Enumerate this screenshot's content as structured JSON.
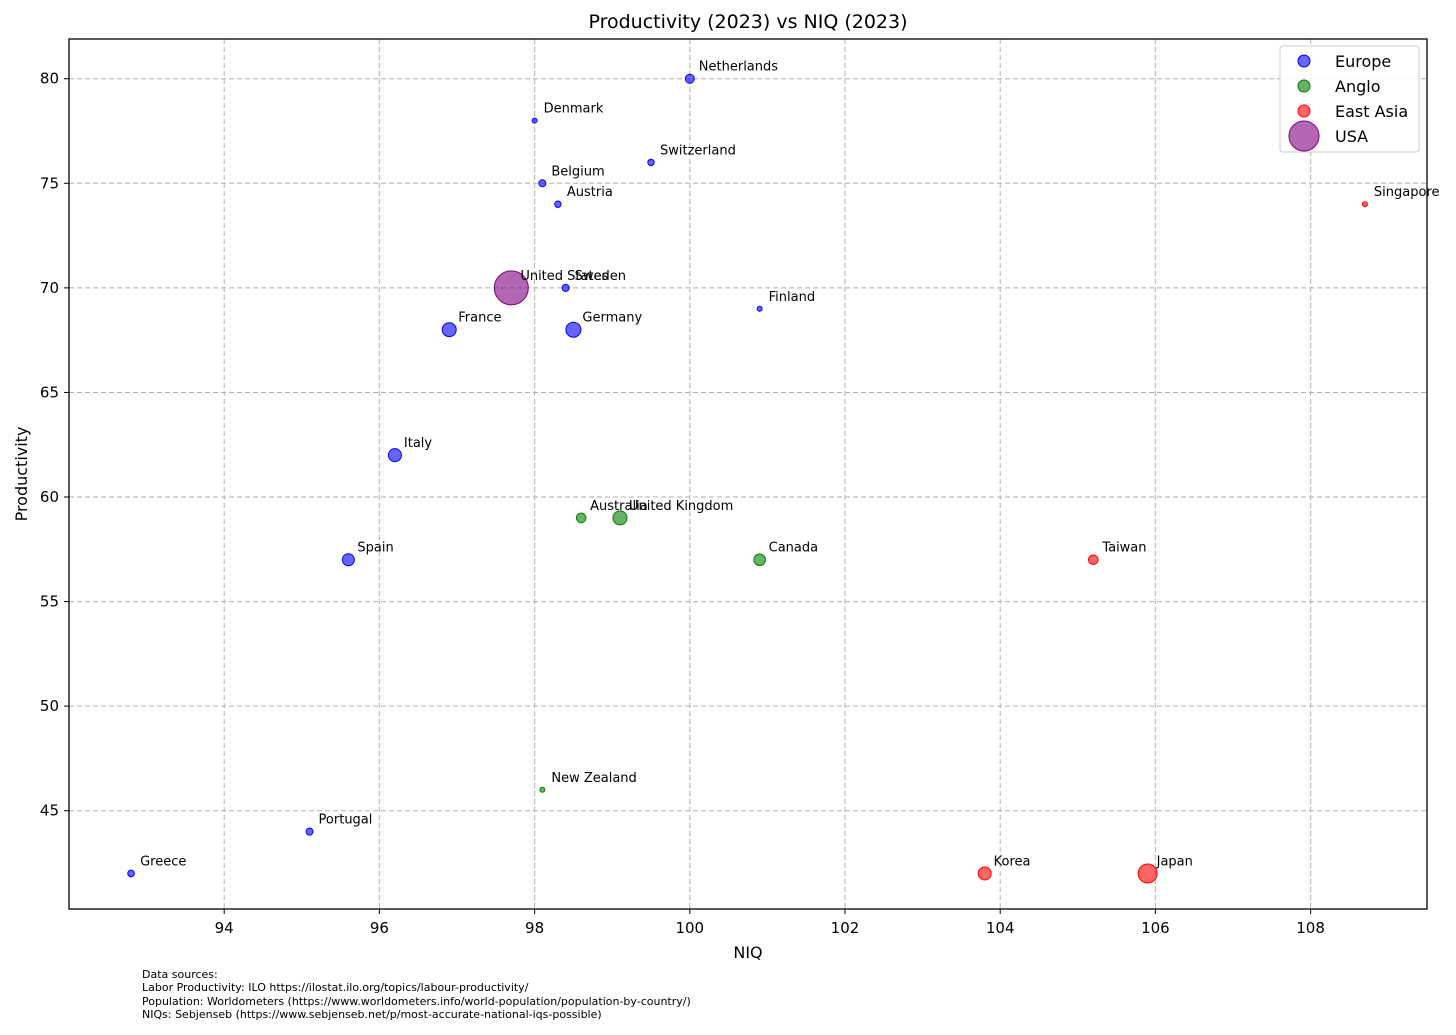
{
  "chart_data": {
    "type": "scatter",
    "title": "Productivity (2023) vs NIQ (2023)",
    "xlabel": "NIQ",
    "ylabel": "Productivity",
    "xlim": [
      92.0,
      109.5
    ],
    "ylim": [
      40.3,
      81.9
    ],
    "xticks": [
      94,
      96,
      98,
      100,
      102,
      104,
      106,
      108
    ],
    "yticks": [
      45,
      50,
      55,
      60,
      65,
      70,
      75,
      80
    ],
    "grid": true,
    "legend_position": "top-right",
    "series": [
      {
        "name": "Europe",
        "color": "#0000ff",
        "points": [
          {
            "label": "Netherlands",
            "x": 100.0,
            "y": 80,
            "size": 4.5
          },
          {
            "label": "Denmark",
            "x": 98.0,
            "y": 78,
            "size": 2.5
          },
          {
            "label": "Switzerland",
            "x": 99.5,
            "y": 76,
            "size": 3.2
          },
          {
            "label": "Belgium",
            "x": 98.1,
            "y": 75,
            "size": 3.5
          },
          {
            "label": "Austria",
            "x": 98.3,
            "y": 74,
            "size": 3.2
          },
          {
            "label": "Sweden",
            "x": 98.4,
            "y": 70,
            "size": 3.5
          },
          {
            "label": "Finland",
            "x": 100.9,
            "y": 69,
            "size": 2.5
          },
          {
            "label": "France",
            "x": 96.9,
            "y": 68,
            "size": 7
          },
          {
            "label": "Germany",
            "x": 98.5,
            "y": 68,
            "size": 7.5
          },
          {
            "label": "Italy",
            "x": 96.2,
            "y": 62,
            "size": 6.5
          },
          {
            "label": "Spain",
            "x": 95.6,
            "y": 57,
            "size": 6
          },
          {
            "label": "Portugal",
            "x": 95.1,
            "y": 44,
            "size": 3.5
          },
          {
            "label": "Greece",
            "x": 92.8,
            "y": 42,
            "size": 3.3
          }
        ]
      },
      {
        "name": "Anglo",
        "color": "#008000",
        "points": [
          {
            "label": "Australia",
            "x": 98.6,
            "y": 59,
            "size": 4.8
          },
          {
            "label": "United Kingdom",
            "x": 99.1,
            "y": 59,
            "size": 7
          },
          {
            "label": "Canada",
            "x": 100.9,
            "y": 57,
            "size": 5.8
          },
          {
            "label": "New Zealand",
            "x": 98.1,
            "y": 46,
            "size": 2.5
          }
        ]
      },
      {
        "name": "East Asia",
        "color": "#ff0000",
        "points": [
          {
            "label": "Singapore",
            "x": 108.7,
            "y": 74,
            "size": 2.5
          },
          {
            "label": "Taiwan",
            "x": 105.2,
            "y": 57,
            "size": 4.8
          },
          {
            "label": "Korea",
            "x": 103.8,
            "y": 42,
            "size": 6.5
          },
          {
            "label": "Japan",
            "x": 105.9,
            "y": 42,
            "size": 9.5
          }
        ]
      },
      {
        "name": "USA",
        "color": "#800080",
        "points": [
          {
            "label": "United States",
            "x": 97.7,
            "y": 70,
            "size": 17
          }
        ]
      }
    ]
  },
  "footnote": [
    "Data sources:",
    "Labor Productivity: ILO https://ilostat.ilo.org/topics/labour-productivity/",
    "Population: Worldometers (https://www.worldometers.info/world-population/population-by-country/)",
    "NIQs: Sebjenseb (https://www.sebjenseb.net/p/most-accurate-national-iqs-possible)"
  ]
}
